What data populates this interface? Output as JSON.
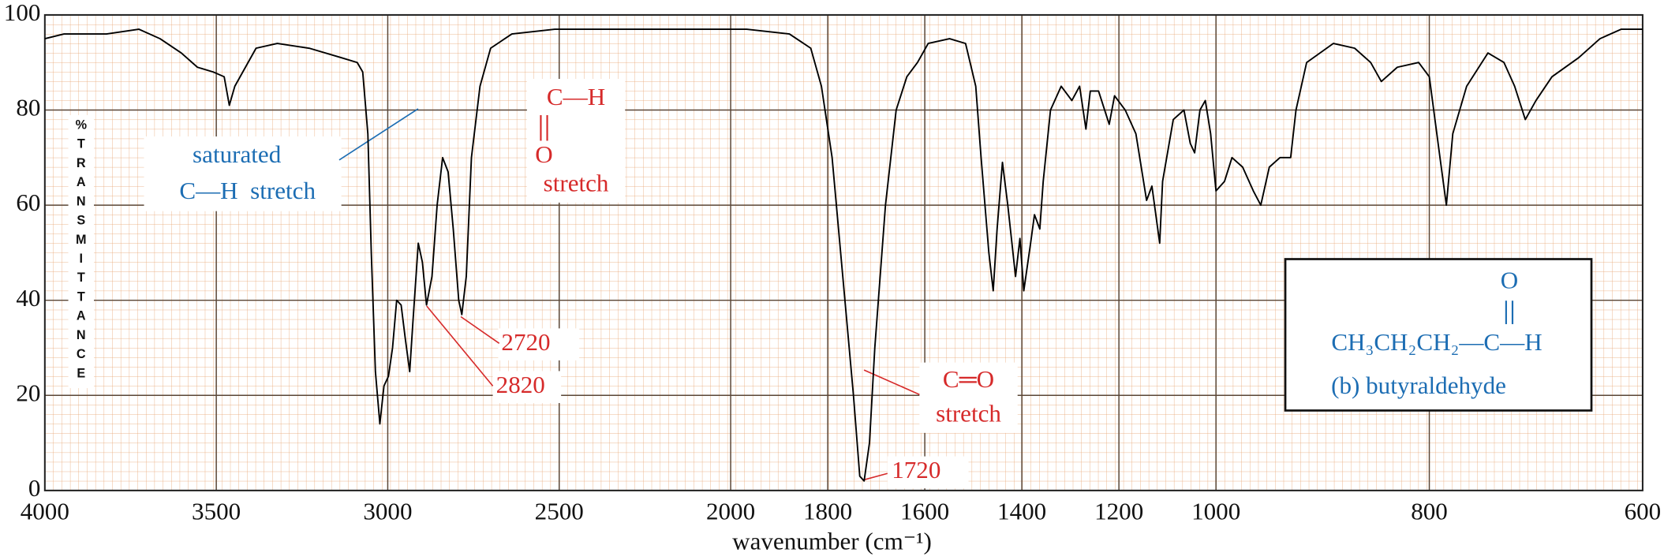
{
  "chart_data": {
    "type": "line",
    "x_label": "wavenumber (cm⁻¹)",
    "y_label": "%TRANSMITTANCE",
    "color": "#000000",
    "grid": true,
    "xlim": [
      4000,
      600
    ],
    "ylim": [
      0,
      100
    ],
    "xticks": [
      4000,
      3500,
      3000,
      2500,
      2000,
      1800,
      1600,
      1400,
      1200,
      1000,
      800,
      600
    ],
    "yticks": [
      0,
      20,
      40,
      60,
      80,
      100
    ],
    "x": [
      4000,
      3944,
      3820,
      3726,
      3664,
      3602,
      3555,
      3509,
      3477,
      3462,
      3446,
      3384,
      3322,
      3229,
      3135,
      3089,
      3073,
      3058,
      3048,
      3036,
      3023,
      3011,
      2998,
      2986,
      2974,
      2961,
      2949,
      2936,
      2927,
      2911,
      2899,
      2887,
      2871,
      2856,
      2840,
      2824,
      2809,
      2793,
      2784,
      2771,
      2756,
      2731,
      2700,
      2638,
      2513,
      2264,
      2000,
      1967,
      1879,
      1835,
      1813,
      1791,
      1769,
      1747,
      1734,
      1725,
      1714,
      1703,
      1681,
      1659,
      1637,
      1615,
      1593,
      1549,
      1516,
      1495,
      1484,
      1468,
      1459,
      1451,
      1440,
      1429,
      1413,
      1404,
      1396,
      1382,
      1374,
      1363,
      1356,
      1341,
      1319,
      1297,
      1281,
      1268,
      1259,
      1242,
      1220,
      1209,
      1187,
      1165,
      1143,
      1132,
      1116,
      1110,
      1088,
      1066,
      1053,
      1044,
      1033,
      1022,
      1011,
      1000,
      992,
      985,
      975,
      965,
      958,
      950,
      940,
      930,
      925,
      915,
      890,
      870,
      855,
      845,
      830,
      810,
      800,
      790,
      784,
      778,
      765,
      745,
      730,
      720,
      710,
      700,
      685,
      660,
      640,
      620,
      600
    ],
    "values": [
      95,
      96,
      96,
      97,
      95,
      92,
      89,
      88,
      87,
      81,
      85,
      93,
      94,
      93,
      91,
      90,
      88,
      75,
      50,
      25,
      14,
      22,
      24,
      30,
      40,
      39,
      32,
      25,
      35,
      52,
      48,
      39,
      45,
      60,
      70,
      67,
      55,
      40,
      37,
      45,
      70,
      85,
      93,
      96,
      97,
      97,
      97,
      97,
      96,
      93,
      85,
      70,
      45,
      20,
      3,
      2,
      10,
      30,
      60,
      80,
      87,
      90,
      94,
      95,
      94,
      85,
      70,
      50,
      42,
      55,
      69,
      60,
      45,
      53,
      42,
      52,
      58,
      55,
      65,
      80,
      85,
      82,
      85,
      76,
      84,
      84,
      77,
      83,
      80,
      75,
      61,
      64,
      52,
      65,
      78,
      80,
      73,
      71,
      80,
      82,
      75,
      63,
      65,
      70,
      68,
      63,
      60,
      68,
      70,
      70,
      80,
      90,
      94,
      93,
      90,
      86,
      89,
      90,
      87,
      70,
      60,
      75,
      85,
      92,
      90,
      85,
      78,
      82,
      87,
      91,
      95,
      97,
      97
    ],
    "annotations": [
      {
        "text": "saturated"
      },
      {
        "text": "C—H  stretch"
      },
      {
        "text": "C—H"
      },
      {
        "text": "O"
      },
      {
        "text": "stretch"
      },
      {
        "text": "2720"
      },
      {
        "text": "2820"
      },
      {
        "text": "C═O"
      },
      {
        "text": "stretch"
      },
      {
        "text": "1720"
      }
    ],
    "structure": {
      "oxygen": "O",
      "formula": "CH₃CH₂CH₂—C—H",
      "caption": "(b) butyraldehyde"
    }
  }
}
